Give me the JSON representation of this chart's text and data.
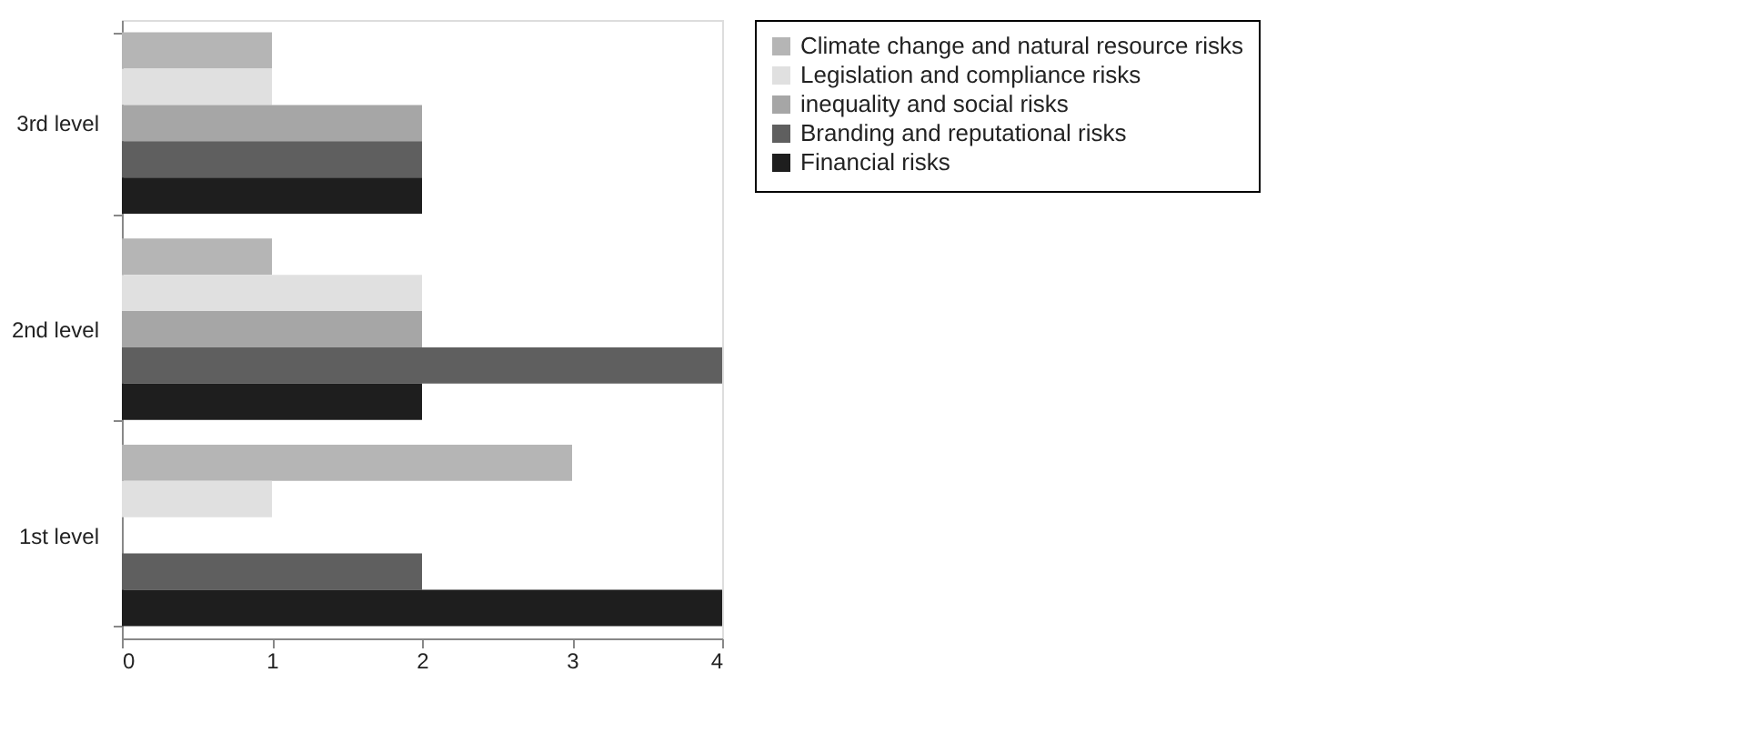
{
  "chart_data": {
    "type": "bar",
    "orientation": "horizontal",
    "categories": [
      "3rd level",
      "2nd level",
      "1st level"
    ],
    "series": [
      {
        "name": "Climate change and natural resource risks",
        "color": "#b5b5b5",
        "values": [
          1,
          1,
          3
        ]
      },
      {
        "name": "Legislation and compliance risks",
        "color": "#e0e0e0",
        "values": [
          1,
          2,
          1
        ]
      },
      {
        "name": "inequality and social risks",
        "color": "#a6a6a6",
        "values": [
          2,
          2,
          0
        ]
      },
      {
        "name": "Branding and reputational risks",
        "color": "#5f5f5f",
        "values": [
          2,
          4,
          2
        ]
      },
      {
        "name": "Financial risks",
        "color": "#1e1e1e",
        "values": [
          2,
          2,
          4
        ]
      }
    ],
    "xlim": [
      0,
      4
    ],
    "xticks": [
      0,
      1,
      2,
      3,
      4
    ],
    "grid": false,
    "legend": "right"
  }
}
